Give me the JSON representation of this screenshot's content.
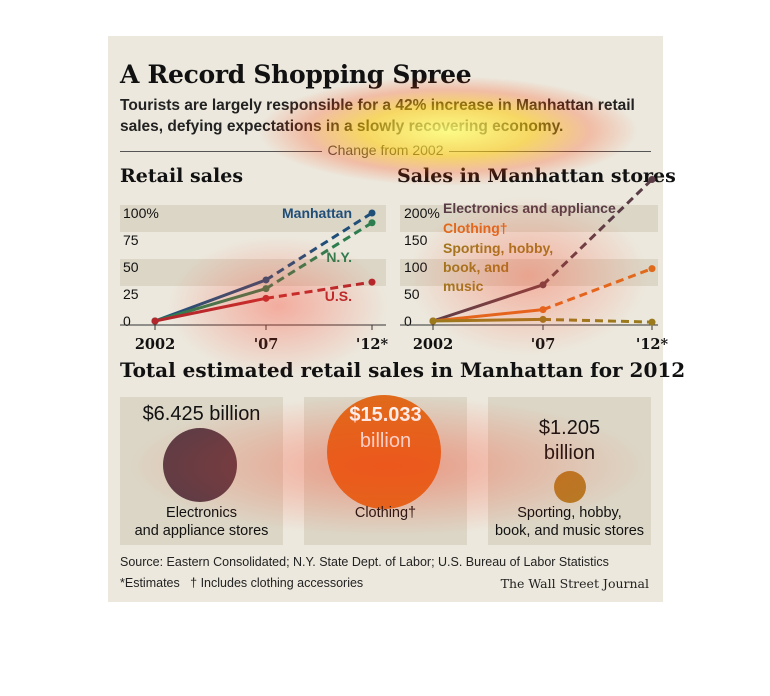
{
  "header": {
    "title": "A Record Shopping Spree",
    "subtitle": "Tourists are largely responsible for a 42% increase in Manhattan retail sales, defying expectations in a slowly recovering economy.",
    "divider_label": "Change from 2002"
  },
  "colors": {
    "background": "#ece8dd",
    "box": "#dcd6c6",
    "manhattan": "#1f4e79",
    "ny": "#2e7d4f",
    "us": "#b3262b",
    "electronics": "#5a3c46",
    "clothing": "#e06a1b",
    "sporting": "#9a7a1c"
  },
  "chart_data": [
    {
      "type": "line",
      "title": "Retail sales",
      "categories": [
        "2002",
        "'07",
        "'12*"
      ],
      "ylim": [
        0,
        100
      ],
      "yticks": [
        "100%",
        "75",
        "50",
        "25",
        "0"
      ],
      "note": "dashed segments are estimates",
      "series": [
        {
          "name": "Manhattan",
          "values": [
            0,
            38,
            100
          ]
        },
        {
          "name": "N.Y.",
          "values": [
            0,
            30,
            91
          ]
        },
        {
          "name": "U.S.",
          "values": [
            0,
            21,
            36
          ]
        }
      ]
    },
    {
      "type": "line",
      "title": "Sales in Manhattan stores",
      "categories": [
        "2002",
        "'07",
        "'12*"
      ],
      "ylim": [
        0,
        200
      ],
      "yticks": [
        "200%",
        "150",
        "100",
        "50",
        "0"
      ],
      "note": "dashed segments are estimates",
      "series": [
        {
          "name": "Electronics and appliance",
          "values": [
            0,
            67,
            262
          ]
        },
        {
          "name": "Clothing†",
          "values": [
            0,
            21,
            97
          ]
        },
        {
          "name": "Sporting, hobby, book, and music",
          "values": [
            0,
            3,
            -2
          ]
        }
      ]
    },
    {
      "type": "bubble",
      "title": "Total estimated retail sales in Manhattan for 2012",
      "items": [
        {
          "value_label": "$6.425 billion",
          "label": "Electronics and appliance stores",
          "value": 6.425
        },
        {
          "value_label": "$15.033 billion",
          "label": "Clothing†",
          "value": 15.033
        },
        {
          "value_label": "$1.205 billion",
          "label": "Sporting, hobby, book, and music stores",
          "value": 1.205
        }
      ]
    }
  ],
  "bubbles_text": {
    "b1_value": "$6.425 billion",
    "b1_label": "Electronics\nand appliance stores",
    "b2_value_line1": "$15.033",
    "b2_value_line2": "billion",
    "b2_label": "Clothing†",
    "b3_value_line1": "$1.205",
    "b3_value_line2": "billion",
    "b3_label": "Sporting, hobby,\nbook, and music stores"
  },
  "footer": {
    "source": "Source: Eastern Consolidated; N.Y. State Dept. of Labor; U.S. Bureau of Labor Statistics",
    "notes": "*Estimates   † Includes clothing accessories",
    "credit": "The Wall Street Journal"
  }
}
